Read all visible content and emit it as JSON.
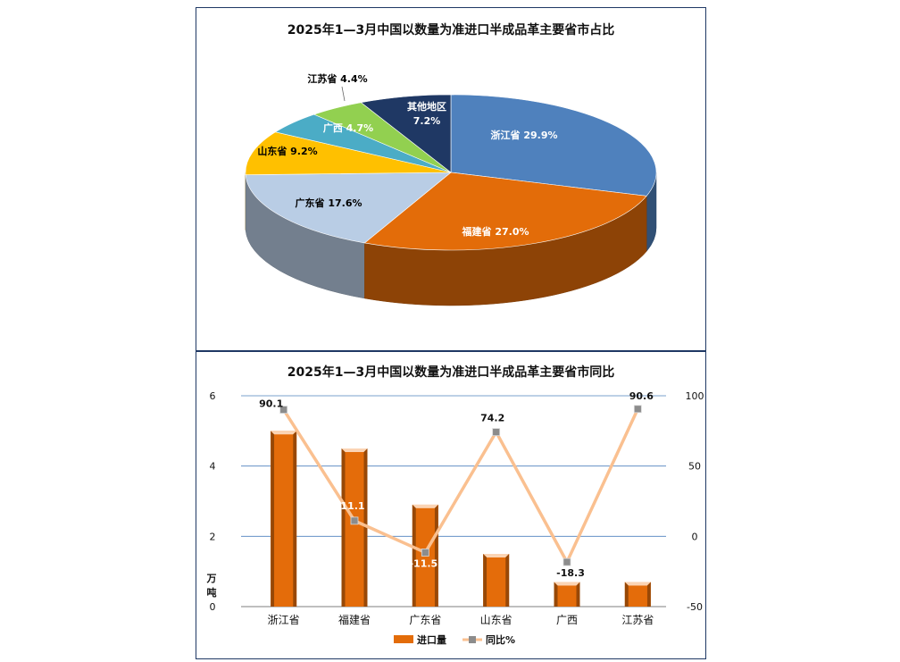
{
  "pie_chart": {
    "chart_data": {
      "type": "pie",
      "title": "2025年1—3月中国以数量为准进口半成品革主要省市占比",
      "slices": [
        {
          "label": "浙江省",
          "value": 29.9,
          "display": "浙江省 29.9%",
          "color": "#4f81bd",
          "text_color": "#ffffff"
        },
        {
          "label": "福建省",
          "value": 27.0,
          "display": "福建省 27.0%",
          "color": "#e36c09",
          "text_color": "#ffffff"
        },
        {
          "label": "广东省",
          "value": 17.6,
          "display": "广东省 17.6%",
          "color": "#b9cde5",
          "text_color": "#000000"
        },
        {
          "label": "山东省",
          "value": 9.2,
          "display": "山东省 9.2%",
          "color": "#ffc000",
          "text_color": "#000000"
        },
        {
          "label": "广西",
          "value": 4.7,
          "display": "广西 4.7%",
          "color": "#4bacc6",
          "text_color": "#ffffff"
        },
        {
          "label": "江苏省",
          "value": 4.4,
          "display": "江苏省 4.4%",
          "color": "#92d050",
          "text_color": "#000000"
        },
        {
          "label": "其他地区",
          "value": 7.2,
          "display_line1": "其他地区",
          "display_line2": "7.2%",
          "color": "#1f3864",
          "text_color": "#ffffff"
        }
      ]
    }
  },
  "combo_chart": {
    "chart_data": {
      "type": "bar",
      "title": "2025年1—3月中国以数量为准进口半成品革主要省市同比",
      "categories": [
        "浙江省",
        "福建省",
        "广东省",
        "山东省",
        "广西",
        "江苏省"
      ],
      "series": [
        {
          "name": "进口量",
          "type": "bar",
          "axis": "left",
          "values": [
            5.0,
            4.5,
            2.9,
            1.5,
            0.7,
            0.7
          ],
          "color": "#e36c09"
        },
        {
          "name": "同比%",
          "type": "line",
          "axis": "right",
          "values": [
            90.1,
            11.1,
            -11.5,
            74.2,
            -18.3,
            90.6
          ],
          "labels": [
            "90.1",
            "11.1",
            "-11.5",
            "74.2",
            "-18.3",
            "90.6"
          ],
          "color": "#fac090"
        }
      ],
      "ylabel": "万吨",
      "ylim": [
        0,
        6
      ],
      "y_ticks": [
        "0",
        "2",
        "4",
        "6"
      ],
      "y2lim": [
        -50,
        100
      ],
      "y2_ticks": [
        "-50",
        "0",
        "50",
        "100"
      ],
      "grid": true,
      "legend_position": "bottom"
    }
  }
}
